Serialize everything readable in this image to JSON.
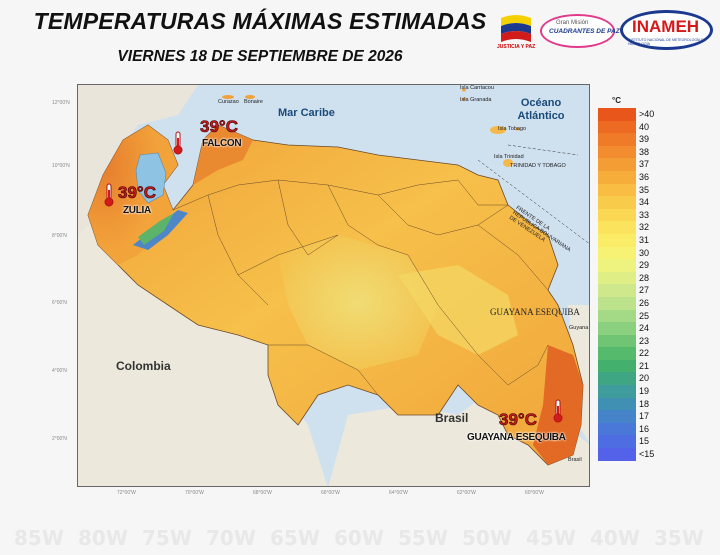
{
  "header": {
    "title": "TEMPERATURAS MÁXIMAS ESTIMADAS",
    "subtitle": "VIERNES 18 DE SEPTIEMBRE DE 2026"
  },
  "logos": {
    "flag_caption": "JUSTICIA Y PAZ",
    "gmc_small": "Gran Misión",
    "gmc_text": "CUADRANTES DE PAZ",
    "inameh": "INAMEH",
    "inameh_sub": "INSTITUTO NACIONAL DE METEOROLOGÍA E HIDROLOGÍA"
  },
  "map": {
    "sea_label": "Mar Caribe",
    "ocean_label_1": "Océano",
    "ocean_label_2": "Atlántico",
    "countries": {
      "colombia": "Colombia",
      "brasil": "Brasil",
      "guayana_esequiba": "GUAYANA ESEQUIBA"
    },
    "small_places": {
      "curazao": "Curazao",
      "bonaire": "Bonaire",
      "carriacou": "Isla Carriacou",
      "granada": "Isla Granada",
      "tobago": "Isla Tobago",
      "trinidad": "Isla Trinidad",
      "trinidad_tobago": "TRINIDAD Y TOBAGO",
      "border_note": "FRENTE DE LA REPUBLICA BOLIVARIANA DE VENEZUELA",
      "guyana": "Guyana",
      "brasil_small": "Brasil"
    },
    "maxima": [
      {
        "value": "39°C",
        "place": "FALCON"
      },
      {
        "value": "39°C",
        "place": "ZULIA"
      },
      {
        "value": "39°C",
        "place": "GUAYANA ESEQUIBA"
      }
    ],
    "lat_ticks": [
      "12°00'N",
      "10°00'N",
      "8°00'N",
      "6°00'N",
      "4°00'N",
      "2°00'N"
    ],
    "lon_ticks": [
      "72°00'W",
      "70°00'W",
      "68°00'W",
      "66°00'W",
      "64°00'W",
      "62°00'W",
      "60°00'W"
    ],
    "bg_lon_ticks": [
      "85W",
      "80W",
      "75W",
      "70W",
      "65W",
      "60W",
      "55W",
      "50W",
      "45W",
      "40W",
      "35W"
    ]
  },
  "legend": {
    "unit": "°C",
    "classes": [
      {
        "label": ">40",
        "color": "#e8561c"
      },
      {
        "label": "40",
        "color": "#ec6a22"
      },
      {
        "label": "39",
        "color": "#ef7b28"
      },
      {
        "label": "38",
        "color": "#f28c2e"
      },
      {
        "label": "37",
        "color": "#f49d34"
      },
      {
        "label": "36",
        "color": "#f6ad3a"
      },
      {
        "label": "35",
        "color": "#f8bd42"
      },
      {
        "label": "34",
        "color": "#f9cb4a"
      },
      {
        "label": "33",
        "color": "#fad854"
      },
      {
        "label": "32",
        "color": "#fbe35e"
      },
      {
        "label": "31",
        "color": "#fbec68"
      },
      {
        "label": "30",
        "color": "#f8f274"
      },
      {
        "label": "29",
        "color": "#eef27e"
      },
      {
        "label": "28",
        "color": "#e0ee86"
      },
      {
        "label": "27",
        "color": "#cfe88c"
      },
      {
        "label": "26",
        "color": "#bce28c"
      },
      {
        "label": "25",
        "color": "#a4da86"
      },
      {
        "label": "24",
        "color": "#8ad07e"
      },
      {
        "label": "23",
        "color": "#6fc574"
      },
      {
        "label": "22",
        "color": "#55ba6c"
      },
      {
        "label": "21",
        "color": "#44b06e"
      },
      {
        "label": "20",
        "color": "#3fa684"
      },
      {
        "label": "19",
        "color": "#3f9c9c"
      },
      {
        "label": "18",
        "color": "#4090b4"
      },
      {
        "label": "17",
        "color": "#4584c8"
      },
      {
        "label": "16",
        "color": "#4a78d8"
      },
      {
        "label": "15",
        "color": "#4e6de2"
      },
      {
        "label": "<15",
        "color": "#5462ea"
      }
    ]
  }
}
